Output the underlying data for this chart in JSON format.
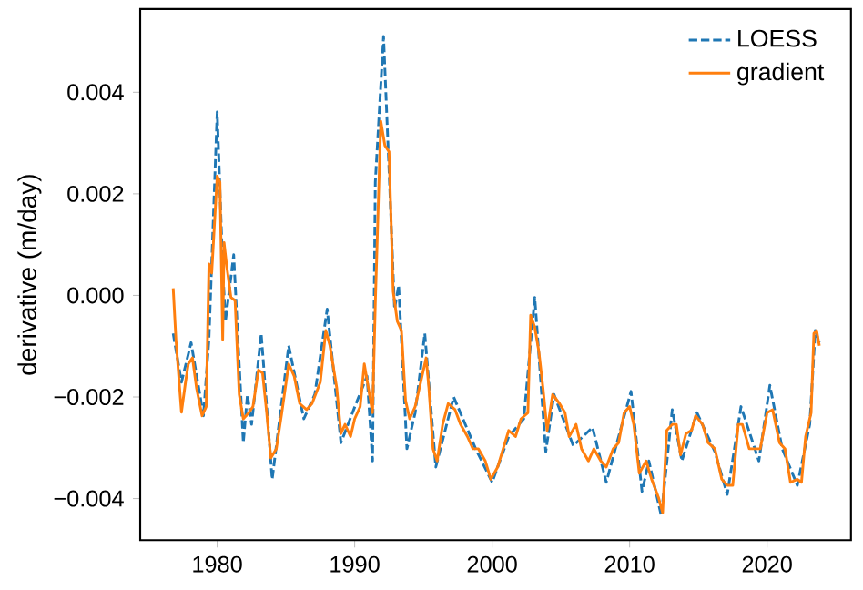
{
  "chart_data": {
    "type": "line",
    "ylabel": "derivative (m/day)",
    "xlim": [
      1974.4,
      2026.1
    ],
    "ylim": [
      -0.00482,
      0.00564
    ],
    "xticks": [
      1980,
      1990,
      2000,
      2010,
      2020
    ],
    "yticks": [
      {
        "value": -0.004,
        "label": "−0.004"
      },
      {
        "value": -0.002,
        "label": "−0.002"
      },
      {
        "value": 0,
        "label": "0.000"
      },
      {
        "value": 0.002,
        "label": "0.002"
      },
      {
        "value": 0.004,
        "label": "0.004"
      }
    ],
    "grid": false,
    "legend": "top right",
    "series": [
      {
        "name": "LOESS",
        "color": "#1f77b4",
        "line_style": "dashed",
        "x": [
          1976.8,
          1977.4,
          1978.1,
          1979.0,
          1979.4,
          1980.0,
          1980.4,
          1980.6,
          1981.2,
          1981.6,
          1981.9,
          1982.2,
          1982.5,
          1983.2,
          1984.0,
          1985.2,
          1986.3,
          1987.1,
          1988.0,
          1989.0,
          1990.1,
          1990.9,
          1991.3,
          1991.5,
          1992.1,
          1992.5,
          1992.9,
          1993.2,
          1993.8,
          1994.4,
          1995.1,
          1995.9,
          1997.2,
          1998.8,
          2000.0,
          2001.2,
          2002.3,
          2003.1,
          2003.9,
          2004.5,
          2005.9,
          2007.3,
          2008.3,
          2008.9,
          2009.2,
          2010.1,
          2010.9,
          2011.4,
          2012.3,
          2013.1,
          2013.8,
          2014.9,
          2016.2,
          2017.1,
          2018.1,
          2019.4,
          2020.2,
          2021.1,
          2022.2,
          2023.1,
          2023.5,
          2023.8
        ],
        "values": [
          -0.00075,
          -0.00171,
          -0.00093,
          -0.00237,
          -0.00087,
          0.00361,
          0.00056,
          -0.00051,
          0.0008,
          -0.00135,
          -0.0029,
          -0.00195,
          -0.00254,
          -0.00075,
          -0.00362,
          -0.00099,
          -0.00243,
          -0.00195,
          -0.00027,
          -0.0029,
          -0.00213,
          -0.00159,
          -0.00326,
          0.00223,
          0.0051,
          0.00247,
          -0.00027,
          0.0002,
          -0.00302,
          -0.00231,
          -0.00075,
          -0.00338,
          -0.002,
          -0.00302,
          -0.00368,
          -0.00278,
          -0.00243,
          -4e-05,
          -0.00308,
          -0.00195,
          -0.00296,
          -0.0026,
          -0.00368,
          -0.00308,
          -0.00278,
          -0.00189,
          -0.00386,
          -0.00326,
          -0.00434,
          -0.00225,
          -0.00326,
          -0.00231,
          -0.00308,
          -0.00392,
          -0.00219,
          -0.00326,
          -0.00177,
          -0.00302,
          -0.00374,
          -0.00254,
          -0.00069,
          -0.00093
        ]
      },
      {
        "name": "gradient",
        "color": "#ff7f0e",
        "line_style": "solid",
        "x": [
          1976.8,
          1977.0,
          1977.4,
          1977.7,
          1977.9,
          1978.2,
          1978.5,
          1978.9,
          1979.2,
          1979.4,
          1979.6,
          1980.0,
          1980.2,
          1980.4,
          1980.5,
          1980.7,
          1981.0,
          1981.3,
          1981.6,
          1981.9,
          1982.3,
          1982.6,
          1983.0,
          1983.3,
          1983.6,
          1983.9,
          1984.3,
          1984.7,
          1985.2,
          1985.6,
          1986.0,
          1986.5,
          1986.9,
          1987.5,
          1987.9,
          1988.2,
          1988.7,
          1989.0,
          1989.3,
          1989.7,
          1990.0,
          1990.4,
          1990.7,
          1991.0,
          1991.3,
          1991.5,
          1991.9,
          1992.2,
          1992.5,
          1992.8,
          1993.1,
          1993.4,
          1993.7,
          1994.0,
          1994.4,
          1994.9,
          1995.2,
          1995.4,
          1995.7,
          1996.0,
          1996.4,
          1996.8,
          1997.3,
          1997.7,
          1998.2,
          1998.6,
          1999.0,
          1999.5,
          1999.9,
          2000.4,
          2000.8,
          2001.2,
          2001.7,
          2002.1,
          2002.6,
          2002.8,
          2003.1,
          2003.4,
          2003.7,
          2004.0,
          2004.4,
          2004.9,
          2005.3,
          2005.6,
          2006.1,
          2006.5,
          2007.0,
          2007.4,
          2007.9,
          2008.3,
          2008.8,
          2009.2,
          2009.6,
          2010.0,
          2010.3,
          2010.7,
          2011.2,
          2011.6,
          2012.1,
          2012.4,
          2012.7,
          2013.1,
          2013.4,
          2013.7,
          2014.1,
          2014.5,
          2014.8,
          2015.3,
          2015.7,
          2016.2,
          2016.7,
          2017.1,
          2017.5,
          2017.9,
          2018.2,
          2018.7,
          2019.1,
          2019.5,
          2020.0,
          2020.4,
          2020.9,
          2021.3,
          2021.7,
          2022.2,
          2022.5,
          2022.8,
          2023.2,
          2023.4,
          2023.6,
          2023.8
        ],
        "values": [
          0.00014,
          -0.00087,
          -0.0023,
          -0.0017,
          -0.00135,
          -0.00123,
          -0.00183,
          -0.00237,
          -0.00219,
          0.00062,
          0.00044,
          0.00235,
          0.00223,
          -0.00087,
          0.00104,
          0.00056,
          -4e-05,
          -0.0001,
          -0.00195,
          -0.00243,
          -0.00231,
          -0.00219,
          -0.00147,
          -0.00153,
          -0.00231,
          -0.0032,
          -0.00302,
          -0.00231,
          -0.00135,
          -0.00159,
          -0.00213,
          -0.00225,
          -0.00213,
          -0.00171,
          -0.00069,
          -0.00099,
          -0.00183,
          -0.00272,
          -0.00254,
          -0.00278,
          -0.00243,
          -0.00219,
          -0.00135,
          -0.00183,
          -0.00231,
          -0.00016,
          0.00343,
          0.00295,
          0.00283,
          8e-05,
          -0.00051,
          -0.00069,
          -0.00207,
          -0.00243,
          -0.00219,
          -0.00159,
          -0.00123,
          -0.00183,
          -0.00302,
          -0.00326,
          -0.00254,
          -0.00213,
          -0.00225,
          -0.00254,
          -0.00278,
          -0.00302,
          -0.00302,
          -0.00326,
          -0.00362,
          -0.00338,
          -0.00302,
          -0.00266,
          -0.00278,
          -0.00243,
          -0.00231,
          -0.00039,
          -0.00063,
          -0.00111,
          -0.00183,
          -0.00266,
          -0.00195,
          -0.00213,
          -0.00231,
          -0.00278,
          -0.00254,
          -0.00302,
          -0.00326,
          -0.00302,
          -0.00326,
          -0.00338,
          -0.00302,
          -0.0029,
          -0.00231,
          -0.00219,
          -0.00254,
          -0.0035,
          -0.00326,
          -0.00362,
          -0.00398,
          -0.00428,
          -0.00266,
          -0.00254,
          -0.00254,
          -0.00314,
          -0.00272,
          -0.00266,
          -0.00237,
          -0.00254,
          -0.0029,
          -0.00302,
          -0.00362,
          -0.00374,
          -0.00374,
          -0.00254,
          -0.00254,
          -0.00302,
          -0.00302,
          -0.00302,
          -0.00231,
          -0.00225,
          -0.0029,
          -0.00302,
          -0.00368,
          -0.00362,
          -0.00368,
          -0.00278,
          -0.00231,
          -0.00075,
          -0.00069,
          -0.00099
        ]
      }
    ]
  }
}
